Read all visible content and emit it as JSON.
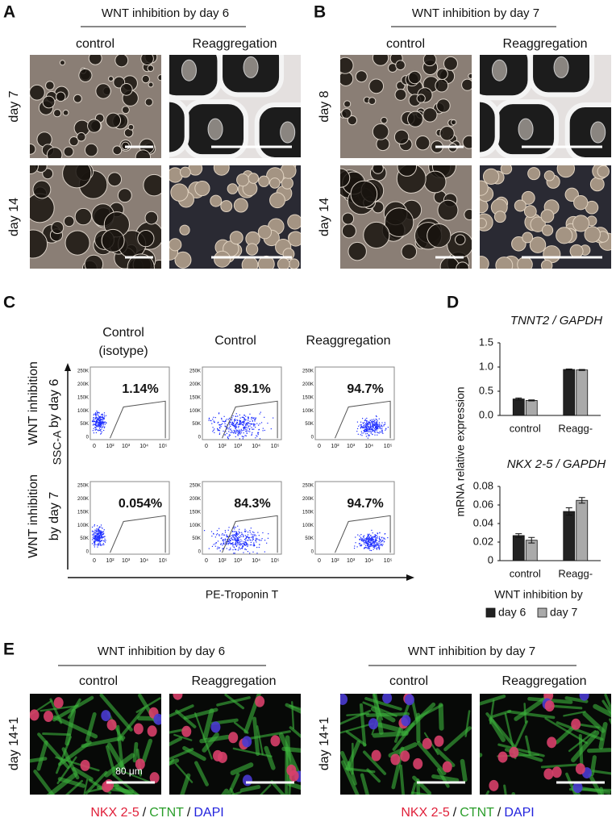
{
  "panel_a": {
    "label": "A",
    "header": "WNT inhibition  by day 6",
    "columns": [
      "control",
      "Reaggregation"
    ],
    "rows": [
      "day 7",
      "day 14"
    ]
  },
  "panel_b": {
    "label": "B",
    "header": "WNT inhibition  by day 7",
    "columns": [
      "control",
      "Reaggregation"
    ],
    "rows": [
      "day 8",
      "day 14"
    ]
  },
  "panel_c": {
    "label": "C",
    "columns": [
      [
        "Control",
        "(isotype)"
      ],
      [
        "Control"
      ],
      [
        "Reaggregation"
      ]
    ],
    "rows": [
      [
        "WNT inhibition",
        "by day 6"
      ],
      [
        "WNT inhibition",
        "by day 7"
      ]
    ],
    "y_axis": "SSC-A",
    "x_axis": "PE-Troponin T",
    "gates": [
      [
        "1.14%",
        "89.1%",
        "94.7%"
      ],
      [
        "0.054%",
        "84.3%",
        "94.7%"
      ]
    ],
    "y_ticks": [
      "250K",
      "200K",
      "150K",
      "100K",
      "50K",
      "0"
    ],
    "x_ticks": [
      "0",
      "10²",
      "10³",
      "10⁴",
      "10⁵"
    ]
  },
  "panel_d": {
    "label": "D",
    "y_axis_label": "mRNA relative expression",
    "legend_title": "WNT inhibition by"
  },
  "chart_data": [
    {
      "type": "bar",
      "title": "TNNT2 / GAPDH",
      "categories": [
        "control",
        "Reagg-"
      ],
      "series": [
        {
          "name": "day 6",
          "color": "#222222",
          "values": [
            0.34,
            0.95
          ],
          "errors": [
            0.02,
            0.01
          ]
        },
        {
          "name": "day 7",
          "color": "#aaaaaa",
          "values": [
            0.31,
            0.94
          ],
          "errors": [
            0.01,
            0.01
          ]
        }
      ],
      "ylim": [
        0,
        1.5
      ],
      "yticks": [
        {
          "value": 0,
          "label": "0.0"
        },
        0.5,
        {
          "value": 1,
          "label": "1.0"
        },
        1.5
      ]
    },
    {
      "type": "bar",
      "title": "NKX 2-5 / GAPDH",
      "categories": [
        "control",
        "Reagg-"
      ],
      "series": [
        {
          "color": "#222222",
          "values": [
            0.027,
            0.053
          ],
          "errors": [
            0.002,
            0.004
          ]
        },
        {
          "color": "#aaaaaa",
          "values": [
            0.022,
            0.065
          ],
          "errors": [
            0.003,
            0.003
          ]
        }
      ],
      "ylim": [
        0,
        0.08
      ],
      "yticks": [
        0,
        0.02,
        0.04,
        0.06,
        0.08
      ]
    }
  ],
  "panel_e": {
    "label": "E",
    "scale_label": "80 μm",
    "separator": "/",
    "stains": [
      {
        "name": "NKX 2-5",
        "color": "#e0203a"
      },
      {
        "name": "CTNT",
        "color": "#2a9d2a"
      },
      {
        "name": "DAPI",
        "color": "#2222dd"
      }
    ],
    "groups": [
      {
        "header": "WNT inhibition  by day 6",
        "columns": [
          "control",
          "Reaggregation"
        ],
        "row": "day 14+1"
      },
      {
        "header": "WNT inhibition  by day 7",
        "columns": [
          "control",
          "Reaggregation"
        ],
        "row": "day 14+1"
      }
    ]
  }
}
